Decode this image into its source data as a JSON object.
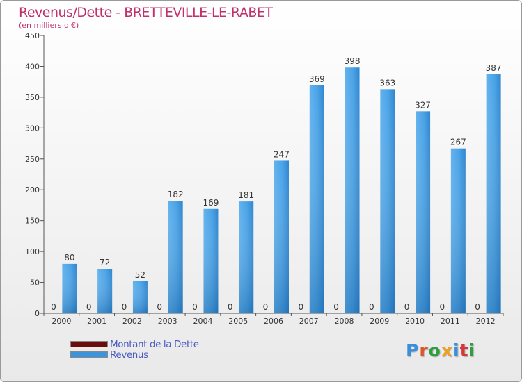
{
  "header": {
    "title": "Revenus/Dette - BRETTEVILLE-LE-RABET",
    "subtitle": "(en milliers d'€)"
  },
  "colors": {
    "title": "#c0306a",
    "dette": "#6b0d0d",
    "revenus": "#3b94dc",
    "legend_text": "#4a5cc0"
  },
  "legend": {
    "items": [
      {
        "label": "Montant de la Dette",
        "color": "#6b0d0d"
      },
      {
        "label": "Revenus",
        "color": "#3b94dc"
      }
    ]
  },
  "logo": {
    "text": "Proxiti",
    "letter_colors": [
      "#3a8fd8",
      "#e0542a",
      "#2e9e3e",
      "#f0a020",
      "#3a8fd8",
      "#d23a3a",
      "#2e9e3e"
    ]
  },
  "chart_data": {
    "type": "bar",
    "title": "Revenus/Dette - BRETTEVILLE-LE-RABET",
    "subtitle": "(en milliers d'€)",
    "xlabel": "",
    "ylabel": "",
    "categories": [
      "2000",
      "2001",
      "2002",
      "2003",
      "2004",
      "2005",
      "2006",
      "2007",
      "2008",
      "2009",
      "2010",
      "2011",
      "2012"
    ],
    "series": [
      {
        "name": "Montant de la Dette",
        "values": [
          0,
          0,
          0,
          0,
          0,
          0,
          0,
          0,
          0,
          0,
          0,
          0,
          0
        ]
      },
      {
        "name": "Revenus",
        "values": [
          80,
          72,
          52,
          182,
          169,
          181,
          247,
          369,
          398,
          363,
          327,
          267,
          387
        ]
      }
    ],
    "ylim": [
      0,
      450
    ],
    "yticks": [
      0,
      50,
      100,
      150,
      200,
      250,
      300,
      350,
      400,
      450
    ],
    "grid": false,
    "legend_position": "bottom-left"
  }
}
